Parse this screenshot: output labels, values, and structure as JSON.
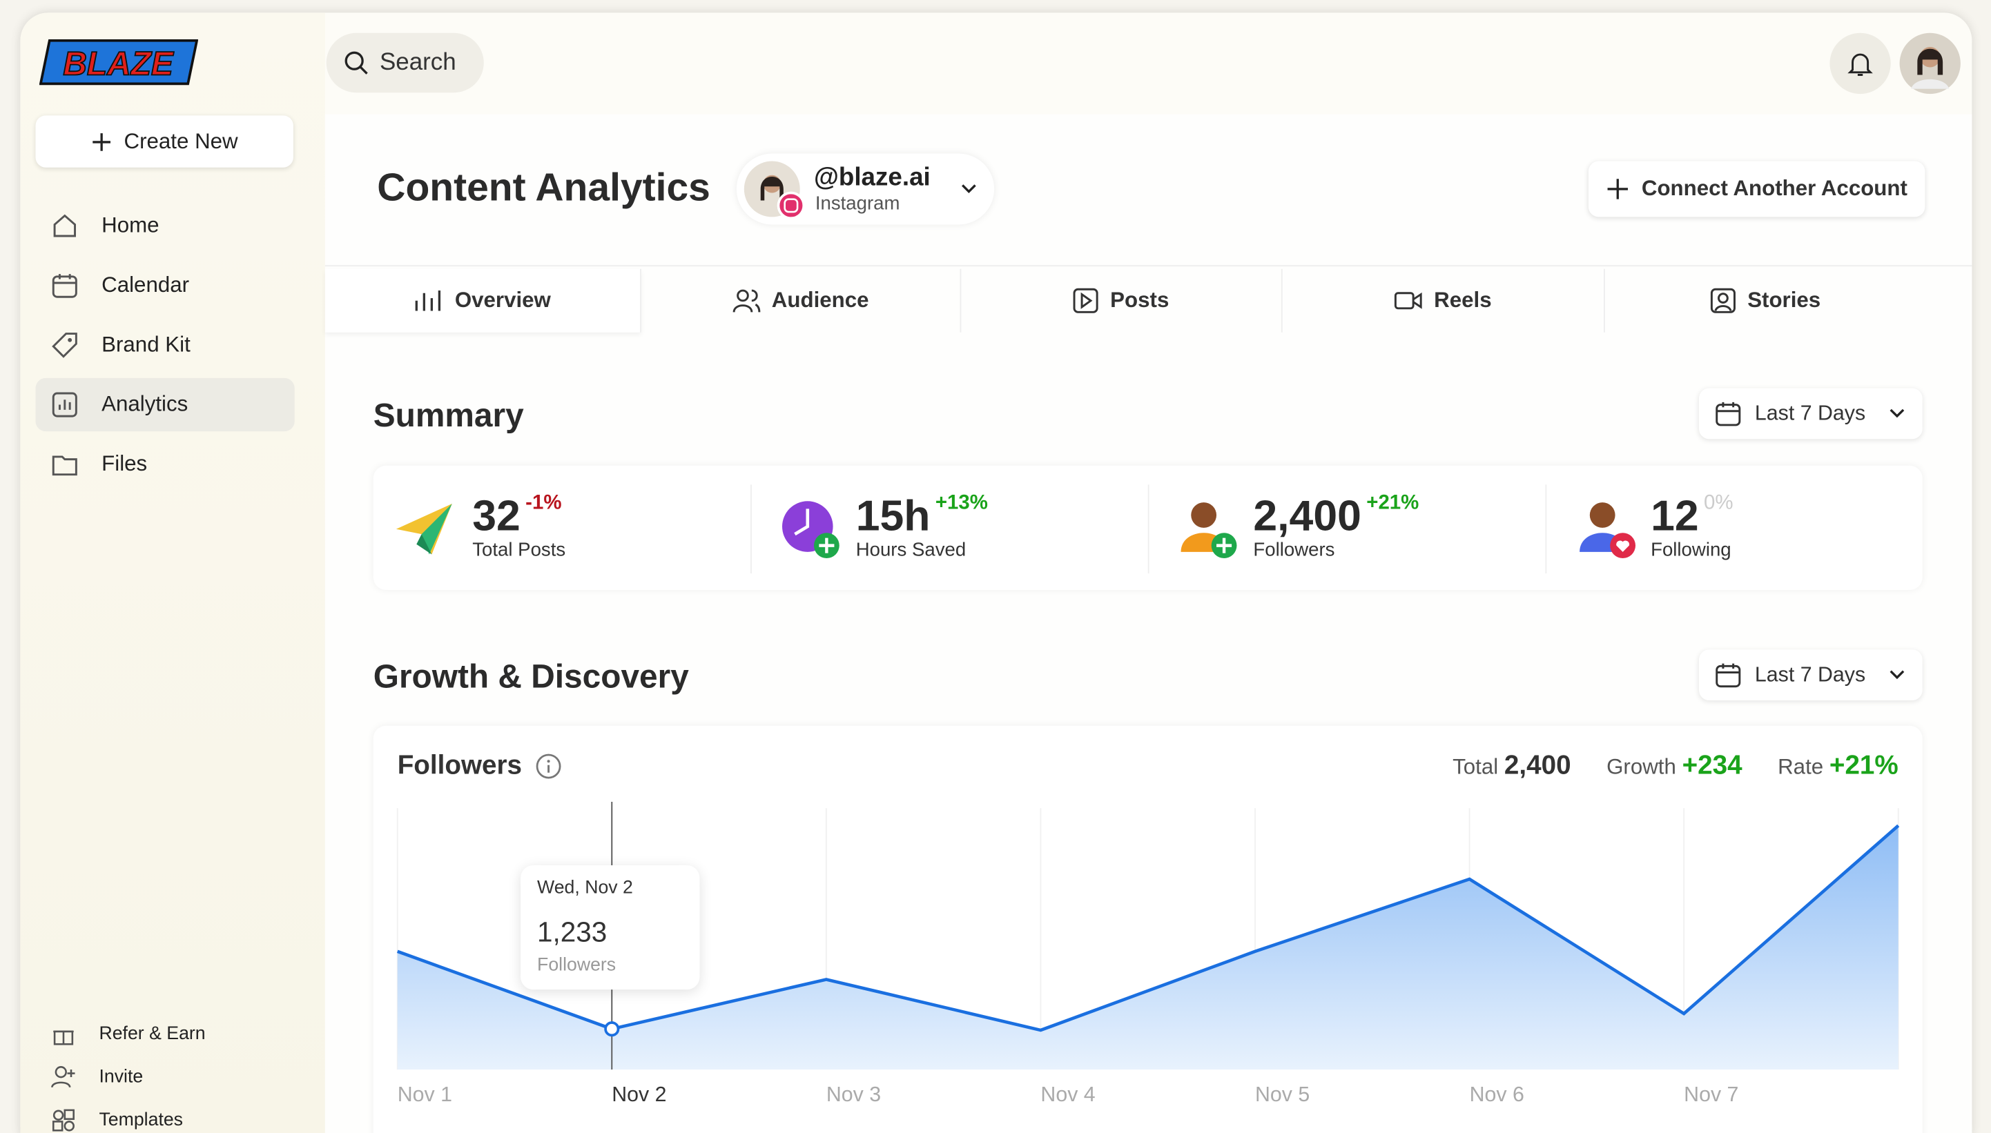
{
  "logo": "BLAZE",
  "search": "Search",
  "sidebar": {
    "create": "Create New",
    "nav": [
      "Home",
      "Calendar",
      "Brand Kit",
      "Analytics",
      "Files"
    ],
    "footer": [
      "Refer & Earn",
      "Invite",
      "Templates"
    ]
  },
  "header": {
    "title": "Content Analytics",
    "account": "@blaze.ai",
    "platform": "Instagram",
    "connect": "Connect Another Account"
  },
  "tabs": [
    "Overview",
    "Audience",
    "Posts",
    "Reels",
    "Stories"
  ],
  "summary": {
    "title": "Summary",
    "range": "Last 7 Days",
    "stats": [
      {
        "value": "32",
        "change": "-1%",
        "label": "Total Posts"
      },
      {
        "value": "15h",
        "change": "+13%",
        "label": "Hours Saved"
      },
      {
        "value": "2,400",
        "change": "+21%",
        "label": "Followers"
      },
      {
        "value": "12",
        "change": "0%",
        "label": "Following"
      }
    ]
  },
  "growth": {
    "title": "Growth & Discovery",
    "range": "Last 7 Days"
  },
  "chart_data": {
    "type": "area",
    "title": "Followers",
    "stats": [
      {
        "label": "Total",
        "value": "2,400"
      },
      {
        "label": "Growth",
        "value": "+234"
      },
      {
        "label": "Rate",
        "value": "+21%"
      }
    ],
    "categories": [
      "Nov 1",
      "Nov 2",
      "Nov 3",
      "Nov 4",
      "Nov 5",
      "Nov 6",
      "Nov 7",
      null
    ],
    "values": [
      1678,
      1233,
      1517,
      1226,
      1678,
      2093,
      1321,
      2400
    ],
    "color": "#1a6fe0",
    "ylim": [
      1000,
      2500
    ],
    "tooltip": {
      "date": "Wed, Nov 2",
      "label": "1,233",
      "caption": "Followers"
    }
  }
}
